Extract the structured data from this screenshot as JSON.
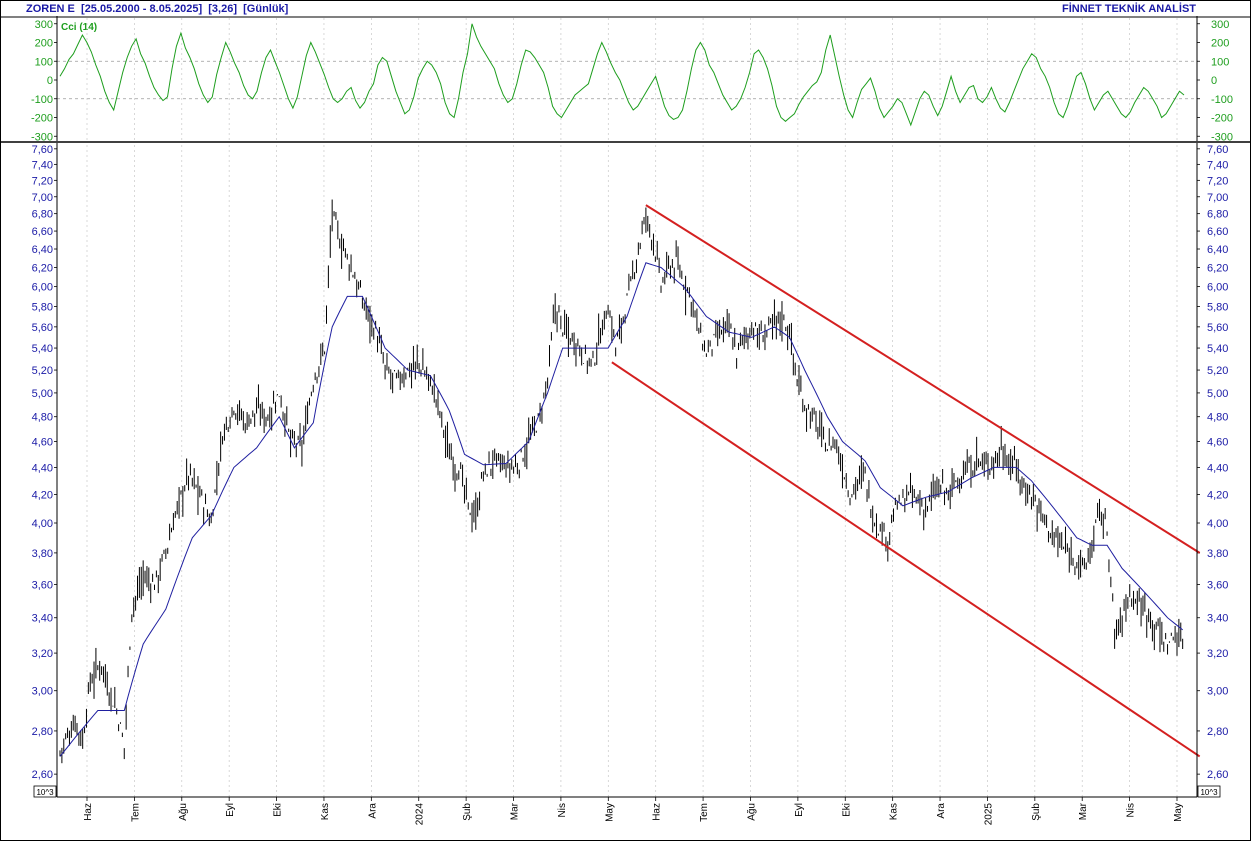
{
  "header": {
    "symbol": "ZOREN E",
    "range": "[25.05.2000 - 8.05.2025]",
    "last": "[3,26]",
    "period": "[Günlük]",
    "brand": "FİNNET TEKNİK ANALİST"
  },
  "scale_unit_label": "10^3",
  "colors": {
    "price_bars": "#000000",
    "moving_average": "#1f1fa0",
    "channel": "#d42020",
    "cci": "#1e9e1e",
    "axis_text": "#1a1aa6",
    "grid": "#c8c8c8"
  },
  "chart_data": [
    {
      "type": "line",
      "title": "Cci (14)",
      "yticks": [
        300,
        200,
        100,
        0,
        -100,
        -200,
        -300
      ],
      "ylim": [
        -320,
        320
      ],
      "guide_levels": [
        100,
        -100
      ],
      "series": [
        {
          "name": "Cci (14)",
          "values": [
            20,
            60,
            110,
            140,
            190,
            240,
            200,
            150,
            80,
            20,
            -60,
            -120,
            -160,
            -60,
            40,
            120,
            180,
            220,
            140,
            90,
            20,
            -40,
            -80,
            -110,
            -90,
            60,
            180,
            250,
            170,
            120,
            60,
            -20,
            -80,
            -120,
            -90,
            30,
            120,
            200,
            150,
            90,
            40,
            -30,
            -80,
            -100,
            -60,
            40,
            120,
            160,
            100,
            40,
            -30,
            -100,
            -150,
            -90,
            20,
            130,
            200,
            150,
            90,
            30,
            -40,
            -100,
            -120,
            -100,
            -60,
            -40,
            -110,
            -150,
            -120,
            -60,
            -20,
            80,
            120,
            100,
            20,
            -60,
            -120,
            -180,
            -160,
            -90,
            10,
            60,
            100,
            80,
            40,
            -20,
            -120,
            -180,
            -200,
            -100,
            40,
            140,
            300,
            230,
            180,
            140,
            100,
            60,
            -20,
            -80,
            -120,
            -100,
            -20,
            80,
            160,
            150,
            120,
            80,
            40,
            -40,
            -140,
            -180,
            -200,
            -160,
            -120,
            -80,
            -60,
            -40,
            -20,
            60,
            140,
            200,
            150,
            90,
            40,
            0,
            -60,
            -120,
            -160,
            -140,
            -100,
            -60,
            -20,
            20,
            -60,
            -140,
            -190,
            -210,
            -200,
            -160,
            -60,
            60,
            160,
            200,
            160,
            80,
            40,
            -20,
            -80,
            -120,
            -160,
            -140,
            -100,
            -40,
            40,
            140,
            160,
            120,
            60,
            -30,
            -140,
            -200,
            -220,
            -200,
            -180,
            -130,
            -90,
            -60,
            -30,
            -10,
            40,
            160,
            240,
            130,
            20,
            -80,
            -160,
            -200,
            -120,
            -50,
            -20,
            10,
            -60,
            -150,
            -200,
            -170,
            -140,
            -100,
            -120,
            -180,
            -240,
            -170,
            -100,
            -60,
            -80,
            -140,
            -190,
            -140,
            -60,
            20,
            -60,
            -120,
            -80,
            -40,
            -30,
            -100,
            -120,
            -90,
            -40,
            -100,
            -150,
            -170,
            -120,
            -60,
            0,
            60,
            100,
            140,
            120,
            60,
            20,
            -40,
            -120,
            -180,
            -200,
            -140,
            -60,
            20,
            40,
            -20,
            -100,
            -160,
            -120,
            -80,
            -60,
            -100,
            -140,
            -180,
            -200,
            -170,
            -120,
            -80,
            -40,
            -60,
            -100,
            -140,
            -200,
            -180,
            -140,
            -100,
            -60,
            -80
          ]
        }
      ]
    },
    {
      "type": "bar",
      "subtype": "ohlc-price-with-moving-average",
      "yticks": [
        "7,60",
        "7,40",
        "7,20",
        "7,00",
        "6,80",
        "6,60",
        "6,40",
        "6,20",
        "6,00",
        "5,80",
        "5,60",
        "5,40",
        "5,20",
        "5,00",
        "4,80",
        "4,60",
        "4,40",
        "4,20",
        "4,00",
        "3,80",
        "3,60",
        "3,40",
        "3,20",
        "3,00",
        "2,80",
        "2,60"
      ],
      "ylim": [
        2.5,
        7.65
      ],
      "yscale": "log",
      "x_tick_labels": [
        "Haz",
        "Tem",
        "Ağu",
        "Eyl",
        "Eki",
        "Kas",
        "Ara",
        "2024",
        "Şub",
        "Mar",
        "Nis",
        "May",
        "Haz",
        "Tem",
        "Ağu",
        "Eyl",
        "Eki",
        "Kas",
        "Ara",
        "2025",
        "Şub",
        "Mar",
        "Nis",
        "May"
      ],
      "close_anchors": [
        [
          0,
          2.7
        ],
        [
          8,
          2.85
        ],
        [
          12,
          2.75
        ],
        [
          16,
          3.05
        ],
        [
          22,
          3.15
        ],
        [
          26,
          3.0
        ],
        [
          30,
          2.9
        ],
        [
          34,
          2.72
        ],
        [
          38,
          3.45
        ],
        [
          44,
          3.65
        ],
        [
          50,
          3.6
        ],
        [
          56,
          3.8
        ],
        [
          62,
          4.1
        ],
        [
          68,
          4.35
        ],
        [
          74,
          4.2
        ],
        [
          80,
          4.0
        ],
        [
          86,
          4.65
        ],
        [
          92,
          4.9
        ],
        [
          98,
          4.75
        ],
        [
          104,
          4.85
        ],
        [
          110,
          4.8
        ],
        [
          116,
          5.0
        ],
        [
          122,
          4.6
        ],
        [
          128,
          4.55
        ],
        [
          134,
          5.1
        ],
        [
          140,
          5.4
        ],
        [
          144,
          6.8
        ],
        [
          148,
          6.5
        ],
        [
          152,
          6.3
        ],
        [
          156,
          6.1
        ],
        [
          160,
          5.85
        ],
        [
          164,
          5.7
        ],
        [
          168,
          5.5
        ],
        [
          172,
          5.2
        ],
        [
          178,
          5.1
        ],
        [
          184,
          5.2
        ],
        [
          190,
          5.25
        ],
        [
          196,
          5.1
        ],
        [
          200,
          4.9
        ],
        [
          206,
          4.5
        ],
        [
          212,
          4.35
        ],
        [
          216,
          4.1
        ],
        [
          220,
          4.05
        ],
        [
          224,
          4.35
        ],
        [
          230,
          4.45
        ],
        [
          236,
          4.4
        ],
        [
          242,
          4.4
        ],
        [
          248,
          4.6
        ],
        [
          254,
          4.8
        ],
        [
          258,
          5.1
        ],
        [
          262,
          5.8
        ],
        [
          266,
          5.6
        ],
        [
          270,
          5.5
        ],
        [
          274,
          5.45
        ],
        [
          278,
          5.3
        ],
        [
          282,
          5.25
        ],
        [
          286,
          5.55
        ],
        [
          290,
          5.8
        ],
        [
          294,
          5.4
        ],
        [
          298,
          5.7
        ],
        [
          302,
          6.0
        ],
        [
          306,
          6.4
        ],
        [
          310,
          6.75
        ],
        [
          314,
          6.5
        ],
        [
          318,
          6.0
        ],
        [
          322,
          6.2
        ],
        [
          326,
          6.25
        ],
        [
          330,
          6.05
        ],
        [
          334,
          5.9
        ],
        [
          338,
          5.55
        ],
        [
          342,
          5.35
        ],
        [
          346,
          5.45
        ],
        [
          350,
          5.55
        ],
        [
          354,
          5.6
        ],
        [
          358,
          5.35
        ],
        [
          362,
          5.5
        ],
        [
          366,
          5.6
        ],
        [
          370,
          5.5
        ],
        [
          374,
          5.55
        ],
        [
          378,
          5.65
        ],
        [
          382,
          5.7
        ],
        [
          386,
          5.55
        ],
        [
          390,
          5.1
        ],
        [
          394,
          4.9
        ],
        [
          398,
          4.8
        ],
        [
          402,
          4.7
        ],
        [
          406,
          4.55
        ],
        [
          410,
          4.6
        ],
        [
          414,
          4.4
        ],
        [
          418,
          4.2
        ],
        [
          422,
          4.3
        ],
        [
          426,
          4.35
        ],
        [
          430,
          4.05
        ],
        [
          434,
          3.95
        ],
        [
          438,
          3.9
        ],
        [
          442,
          4.1
        ],
        [
          446,
          4.15
        ],
        [
          450,
          4.2
        ],
        [
          454,
          4.15
        ],
        [
          458,
          4.1
        ],
        [
          462,
          4.2
        ],
        [
          466,
          4.25
        ],
        [
          470,
          4.2
        ],
        [
          474,
          4.3
        ],
        [
          478,
          4.35
        ],
        [
          482,
          4.4
        ],
        [
          486,
          4.45
        ],
        [
          490,
          4.4
        ],
        [
          494,
          4.45
        ],
        [
          498,
          4.55
        ],
        [
          502,
          4.45
        ],
        [
          506,
          4.4
        ],
        [
          510,
          4.25
        ],
        [
          514,
          4.2
        ],
        [
          518,
          4.1
        ],
        [
          522,
          4.0
        ],
        [
          526,
          3.9
        ],
        [
          530,
          3.85
        ],
        [
          534,
          3.8
        ],
        [
          538,
          3.75
        ],
        [
          542,
          3.7
        ],
        [
          546,
          3.85
        ],
        [
          550,
          4.1
        ],
        [
          554,
          3.95
        ],
        [
          558,
          3.3
        ],
        [
          562,
          3.4
        ],
        [
          566,
          3.55
        ],
        [
          570,
          3.5
        ],
        [
          574,
          3.45
        ],
        [
          578,
          3.4
        ],
        [
          582,
          3.3
        ],
        [
          586,
          3.25
        ],
        [
          590,
          3.3
        ],
        [
          594,
          3.26
        ]
      ],
      "moving_average_anchors": [
        [
          0,
          2.68
        ],
        [
          20,
          2.9
        ],
        [
          34,
          2.9
        ],
        [
          44,
          3.25
        ],
        [
          56,
          3.45
        ],
        [
          70,
          3.9
        ],
        [
          80,
          4.05
        ],
        [
          92,
          4.4
        ],
        [
          104,
          4.55
        ],
        [
          116,
          4.8
        ],
        [
          124,
          4.55
        ],
        [
          134,
          4.75
        ],
        [
          144,
          5.6
        ],
        [
          152,
          5.9
        ],
        [
          160,
          5.9
        ],
        [
          172,
          5.4
        ],
        [
          184,
          5.2
        ],
        [
          196,
          5.15
        ],
        [
          206,
          4.85
        ],
        [
          214,
          4.5
        ],
        [
          224,
          4.42
        ],
        [
          236,
          4.43
        ],
        [
          248,
          4.6
        ],
        [
          258,
          5.0
        ],
        [
          266,
          5.4
        ],
        [
          278,
          5.4
        ],
        [
          290,
          5.4
        ],
        [
          300,
          5.7
        ],
        [
          310,
          6.25
        ],
        [
          318,
          6.2
        ],
        [
          330,
          6.0
        ],
        [
          342,
          5.7
        ],
        [
          354,
          5.55
        ],
        [
          366,
          5.5
        ],
        [
          378,
          5.6
        ],
        [
          386,
          5.5
        ],
        [
          394,
          5.2
        ],
        [
          406,
          4.8
        ],
        [
          414,
          4.6
        ],
        [
          426,
          4.45
        ],
        [
          434,
          4.25
        ],
        [
          446,
          4.12
        ],
        [
          458,
          4.18
        ],
        [
          470,
          4.22
        ],
        [
          482,
          4.32
        ],
        [
          494,
          4.4
        ],
        [
          506,
          4.4
        ],
        [
          514,
          4.3
        ],
        [
          526,
          4.1
        ],
        [
          538,
          3.9
        ],
        [
          546,
          3.85
        ],
        [
          554,
          3.85
        ],
        [
          562,
          3.7
        ],
        [
          574,
          3.55
        ],
        [
          586,
          3.4
        ],
        [
          594,
          3.33
        ]
      ],
      "channel_lines": [
        {
          "role": "upper",
          "from": [
            310,
            6.9
          ],
          "to": [
            603,
            3.8
          ]
        },
        {
          "role": "lower",
          "from": [
            292,
            5.27
          ],
          "to": [
            603,
            2.68
          ]
        }
      ]
    }
  ]
}
